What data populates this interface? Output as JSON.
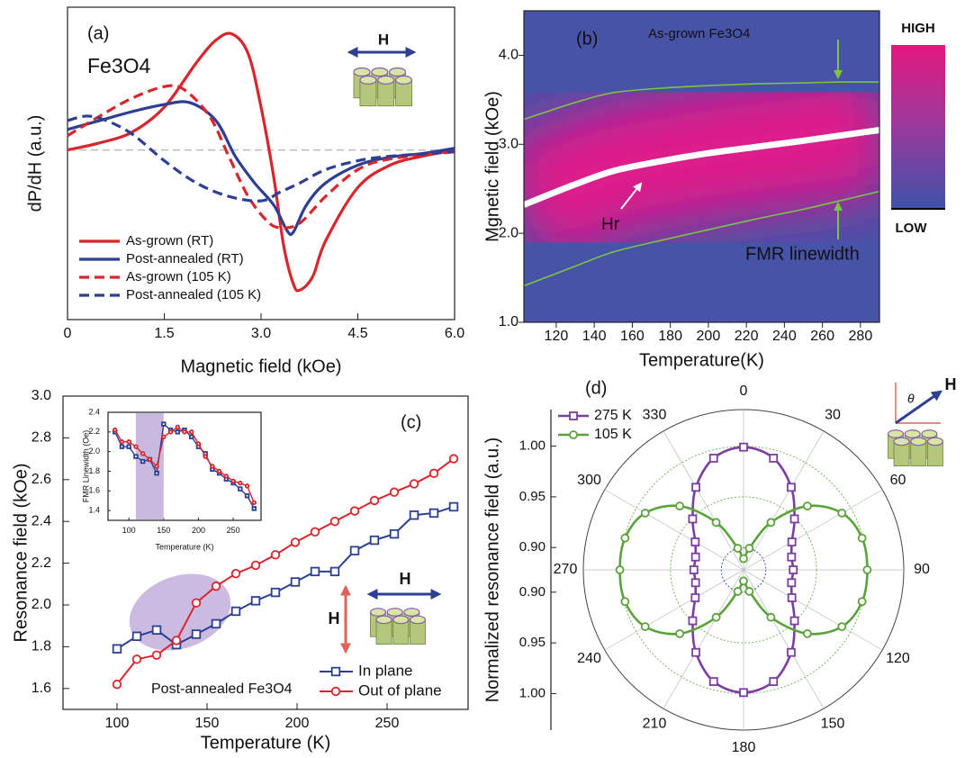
{
  "chart_data": [
    {
      "type": "line",
      "label": "(a)",
      "title": "Fe3O4",
      "annotation": "H",
      "xlabel": "Magnetic field (kOe)",
      "ylabel": "dP/dH (a.u.)",
      "xlim": [
        0,
        6
      ],
      "ylim": [
        -1.9,
        1.6
      ],
      "xticks": [
        0,
        1.5,
        {
          "value": 3,
          "label": "3.0"
        },
        4.5,
        {
          "value": 6,
          "label": "6.0"
        }
      ],
      "series": [
        {
          "name": "As-grown (RT)",
          "color": "#d9252b",
          "dashed": false,
          "x": [
            0,
            0.5,
            1.0,
            1.5,
            2.0,
            2.3,
            2.55,
            2.8,
            3.0,
            3.2,
            3.35,
            3.5,
            3.6,
            3.8,
            4.0,
            4.5,
            5.0,
            5.5,
            6.0
          ],
          "values": [
            0,
            0.08,
            0.2,
            0.48,
            0.98,
            1.23,
            1.3,
            1.08,
            0.48,
            -0.32,
            -1.07,
            -1.5,
            -1.57,
            -1.42,
            -1.02,
            -0.42,
            -0.17,
            -0.07,
            0
          ]
        },
        {
          "name": "Post-annealed (RT)",
          "color": "#2d3f94",
          "dashed": false,
          "x": [
            0,
            0.5,
            1.0,
            1.5,
            1.9,
            2.3,
            2.6,
            2.9,
            3.2,
            3.4,
            3.5,
            3.7,
            4.0,
            4.5,
            5.0,
            5.5,
            6.0
          ],
          "values": [
            0.23,
            0.33,
            0.43,
            0.51,
            0.53,
            0.33,
            -0.07,
            -0.37,
            -0.62,
            -0.9,
            -0.92,
            -0.62,
            -0.37,
            -0.17,
            -0.08,
            -0.04,
            0.02
          ]
        },
        {
          "name": "As-grown  (105 K)",
          "color": "#d9252b",
          "dashed": true,
          "x": [
            0,
            0.5,
            1.0,
            1.5,
            1.8,
            2.2,
            2.5,
            2.8,
            3.1,
            3.3,
            3.6,
            4.0,
            4.5,
            5.0,
            6.0
          ],
          "values": [
            0.16,
            0.38,
            0.58,
            0.71,
            0.68,
            0.38,
            -0.07,
            -0.52,
            -0.8,
            -0.87,
            -0.82,
            -0.52,
            -0.22,
            -0.1,
            -0.02
          ]
        },
        {
          "name": "Post-annealed (105 K)",
          "color": "#2d3f94",
          "dashed": true,
          "x": [
            0,
            0.3,
            0.6,
            1.0,
            1.5,
            2.0,
            2.5,
            3.0,
            3.3,
            3.6,
            4.0,
            4.5,
            5.0,
            6.0
          ],
          "values": [
            0.33,
            0.38,
            0.33,
            0.18,
            -0.12,
            -0.37,
            -0.52,
            -0.57,
            -0.47,
            -0.37,
            -0.22,
            -0.12,
            -0.07,
            -0.02
          ]
        }
      ]
    },
    {
      "type": "heatmap",
      "label": "(b)",
      "title": "As-grown Fe3O4",
      "annotations": [
        "Hr",
        "FMR linewidth"
      ],
      "xlabel": "Temperature(K)",
      "ylabel": "Mgnetic field (kOe)",
      "colorbar": {
        "high": "HIGH",
        "low": "LOW"
      },
      "xlim": [
        103,
        290
      ],
      "ylim": [
        1.0,
        4.5
      ],
      "xticks": [
        120,
        140,
        160,
        180,
        200,
        220,
        240,
        260,
        280
      ],
      "yticks": [
        {
          "value": 1,
          "label": "1.0"
        },
        {
          "value": 2,
          "label": "2.0"
        },
        {
          "value": 3,
          "label": "3.0"
        },
        {
          "value": 4,
          "label": "4.0"
        }
      ],
      "series": [
        {
          "color": "#ffffff",
          "x": [
            103,
            130,
            150,
            175,
            200,
            225,
            250,
            270,
            290
          ],
          "values": [
            2.32,
            2.55,
            2.7,
            2.81,
            2.9,
            2.97,
            3.04,
            3.1,
            3.16
          ]
        },
        {
          "color": "#7dc243",
          "x": [
            103,
            130,
            150,
            175,
            200,
            225,
            250,
            270,
            290
          ],
          "values": [
            3.28,
            3.47,
            3.58,
            3.63,
            3.66,
            3.68,
            3.69,
            3.7,
            3.7
          ]
        },
        {
          "color": "#7dc243",
          "x": [
            103,
            130,
            150,
            175,
            200,
            225,
            250,
            270,
            290
          ],
          "values": [
            1.41,
            1.63,
            1.79,
            1.92,
            2.04,
            2.16,
            2.27,
            2.37,
            2.47
          ]
        }
      ]
    },
    {
      "type": "line",
      "label": "(c)",
      "annotations": [
        "H",
        "H",
        "Post-annealed Fe3O4"
      ],
      "xlabel": "Temperature (K)",
      "ylabel": "Resonance  field (kOe)",
      "xlim": [
        70,
        295
      ],
      "ylim": [
        1.5,
        3.0
      ],
      "xticks": [
        100,
        150,
        200,
        250
      ],
      "yticks": [
        1.6,
        1.8,
        {
          "value": 2,
          "label": "2.0"
        },
        2.2,
        2.4,
        2.6,
        2.8,
        {
          "value": 3,
          "label": "3.0"
        }
      ],
      "legend": "bottom-right",
      "x": [
        100,
        111,
        122,
        133,
        144,
        155,
        166,
        177,
        188,
        199,
        210,
        221,
        232,
        243,
        254,
        265,
        276,
        287
      ],
      "series": [
        {
          "name": "In plane",
          "color": "#2d3f94",
          "marker": "square",
          "values": [
            1.79,
            1.85,
            1.88,
            1.81,
            1.86,
            1.91,
            1.97,
            2.02,
            2.06,
            2.11,
            2.16,
            2.16,
            2.26,
            2.31,
            2.34,
            2.43,
            2.44,
            2.47
          ]
        },
        {
          "name": "Out of plane",
          "color": "#d9252b",
          "marker": "circle",
          "values": [
            1.62,
            1.74,
            1.76,
            1.83,
            2.01,
            2.09,
            2.15,
            2.19,
            2.24,
            2.3,
            2.35,
            2.4,
            2.45,
            2.5,
            2.54,
            2.58,
            2.63,
            2.7
          ]
        }
      ]
    },
    {
      "type": "line",
      "xlabel": "Temperature (K)",
      "ylabel": "FMR Linewidth (Oe)",
      "xlim": [
        70,
        290
      ],
      "ylim": [
        1.3,
        2.4
      ],
      "xticks": [
        100,
        150,
        200,
        250
      ],
      "yticks": [
        1.4,
        1.6,
        1.8,
        {
          "value": 2,
          "label": "2.0"
        },
        2.2,
        2.4
      ],
      "shaded_range": [
        110,
        150
      ],
      "x": [
        80,
        90,
        100,
        110,
        120,
        130,
        140,
        150,
        160,
        170,
        180,
        190,
        200,
        210,
        220,
        230,
        240,
        250,
        260,
        270,
        280
      ],
      "series": [
        {
          "color": "#2d3f94",
          "marker": "square",
          "values": [
            2.2,
            2.05,
            2.05,
            1.95,
            1.9,
            1.92,
            1.78,
            2.28,
            2.22,
            2.2,
            2.22,
            2.15,
            2.05,
            1.98,
            1.82,
            1.78,
            1.72,
            1.68,
            1.62,
            1.55,
            1.42
          ]
        },
        {
          "color": "#d9252b",
          "marker": "circle",
          "values": [
            2.22,
            2.1,
            2.1,
            2.05,
            1.98,
            1.92,
            1.85,
            2.15,
            2.2,
            2.25,
            2.2,
            2.2,
            2.08,
            1.95,
            1.85,
            1.8,
            1.75,
            1.7,
            1.68,
            1.65,
            1.48
          ]
        }
      ]
    },
    {
      "type": "polar",
      "label": "(d)",
      "annotation": "H",
      "angle_symbol": "θ",
      "ylabel": "Normalized resonance field (a.u.)",
      "rlim": [
        0.878,
        1.036
      ],
      "rticks": [
        {
          "value": 0.9,
          "label": "0.90"
        },
        {
          "value": 0.95,
          "label": "0.95"
        },
        {
          "value": 1,
          "label": "1.00"
        }
      ],
      "angle_ticks": [
        0,
        30,
        60,
        90,
        120,
        150,
        180,
        210,
        240,
        270,
        300,
        330
      ],
      "theta": [
        0,
        15,
        30,
        45,
        60,
        75,
        90,
        105,
        120,
        135,
        150,
        165,
        180,
        195,
        210,
        225,
        240,
        255,
        270,
        285,
        300,
        315,
        330,
        345
      ],
      "series": [
        {
          "name": "275 K",
          "color": "#7b3fa0",
          "marker": "square",
          "values": [
            0.999,
            0.992,
            0.972,
            0.949,
            0.933,
            0.927,
            0.927,
            0.927,
            0.933,
            0.949,
            0.972,
            0.992,
            0.999,
            0.992,
            0.972,
            0.949,
            0.933,
            0.927,
            0.927,
            0.927,
            0.933,
            0.949,
            0.972,
            0.992
          ]
        },
        {
          "name": "105 K",
          "color": "#5aa33a",
          "marker": "circle",
          "values": [
            0.889,
            0.9,
            0.932,
            0.967,
            0.99,
            0.999,
            1.0,
            0.999,
            0.99,
            0.967,
            0.932,
            0.9,
            0.889,
            0.9,
            0.932,
            0.967,
            0.99,
            0.999,
            1.0,
            0.999,
            0.99,
            0.967,
            0.932,
            0.9
          ]
        }
      ]
    }
  ]
}
